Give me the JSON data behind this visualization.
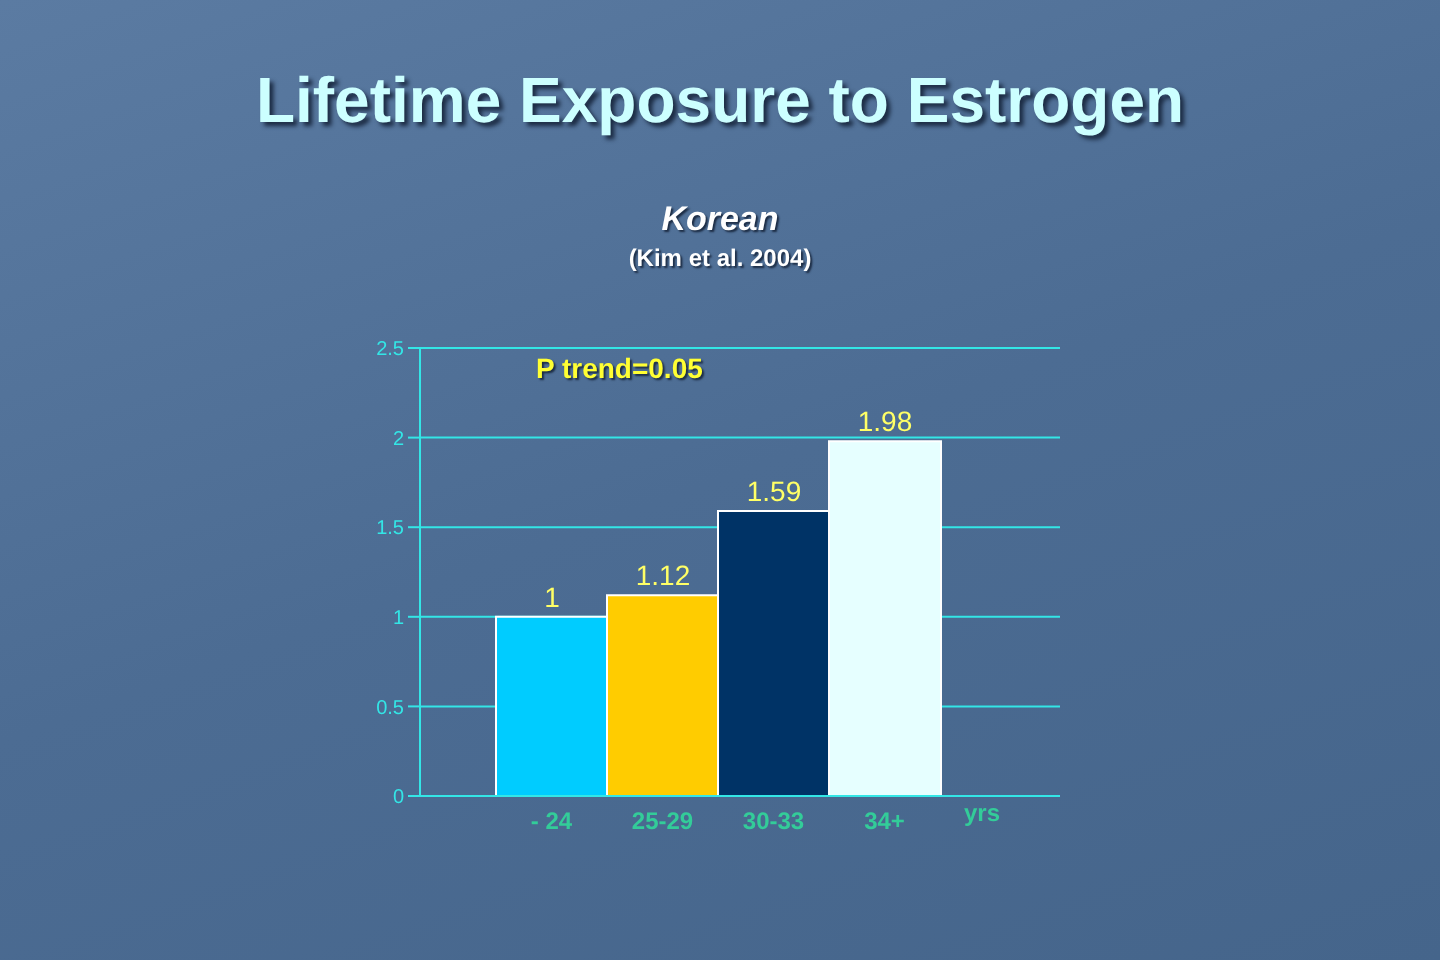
{
  "chart_data": {
    "type": "bar",
    "title": "Lifetime Exposure to Estrogen",
    "subtitle": "Korean",
    "annotations": [
      "(Kim et al. 2004)",
      "P trend=0.05"
    ],
    "xlabel": "yrs",
    "categories": [
      "- 24",
      "25-29",
      "30-33",
      "34+"
    ],
    "values": [
      1,
      1.12,
      1.59,
      1.98
    ],
    "colors": [
      "#00ccff",
      "#ffcc00",
      "#003366",
      "#e6ffff"
    ],
    "ylim": [
      0,
      2.5
    ],
    "yticks": [
      0,
      0.5,
      1,
      1.5,
      2,
      2.5
    ],
    "grid": "y",
    "data_labels": true
  }
}
